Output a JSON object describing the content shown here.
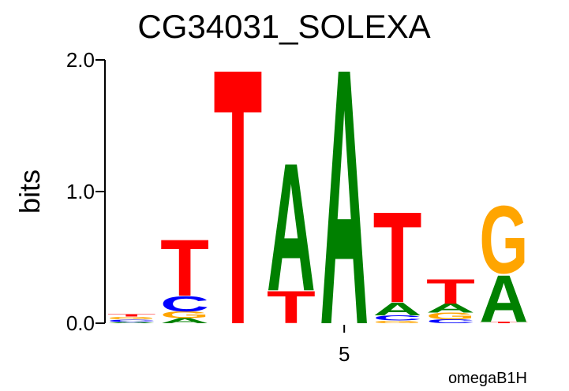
{
  "chart_data": {
    "type": "logo",
    "title": "CG34031_SOLEXA",
    "y_label": "bits",
    "footer": "omegaB1H",
    "x": [
      1,
      2,
      3,
      4,
      5,
      6,
      7,
      8
    ],
    "xlim": [
      0.5,
      8.5
    ],
    "xticks": [
      5
    ],
    "ylim": [
      0,
      2
    ],
    "yticks": [
      {
        "value": 0,
        "label": "0.0"
      },
      {
        "value": 1,
        "label": "1.0"
      },
      {
        "value": 2,
        "label": "2.0"
      }
    ],
    "series": [
      {
        "name": "A",
        "color": "#008000",
        "values": [
          0.01,
          0.04,
          0.0,
          1.0,
          2.0,
          0.1,
          0.07,
          0.37
        ]
      },
      {
        "name": "C",
        "color": "#0000ff",
        "values": [
          0.02,
          0.12,
          0.0,
          0.0,
          0.0,
          0.04,
          0.03,
          0.0
        ]
      },
      {
        "name": "G",
        "color": "#ffa500",
        "values": [
          0.02,
          0.05,
          0.0,
          0.0,
          0.0,
          0.02,
          0.05,
          0.53
        ]
      },
      {
        "name": "T",
        "color": "#ff0000",
        "values": [
          0.02,
          0.44,
          2.0,
          0.25,
          0.0,
          0.71,
          0.19,
          0.01
        ]
      }
    ]
  }
}
